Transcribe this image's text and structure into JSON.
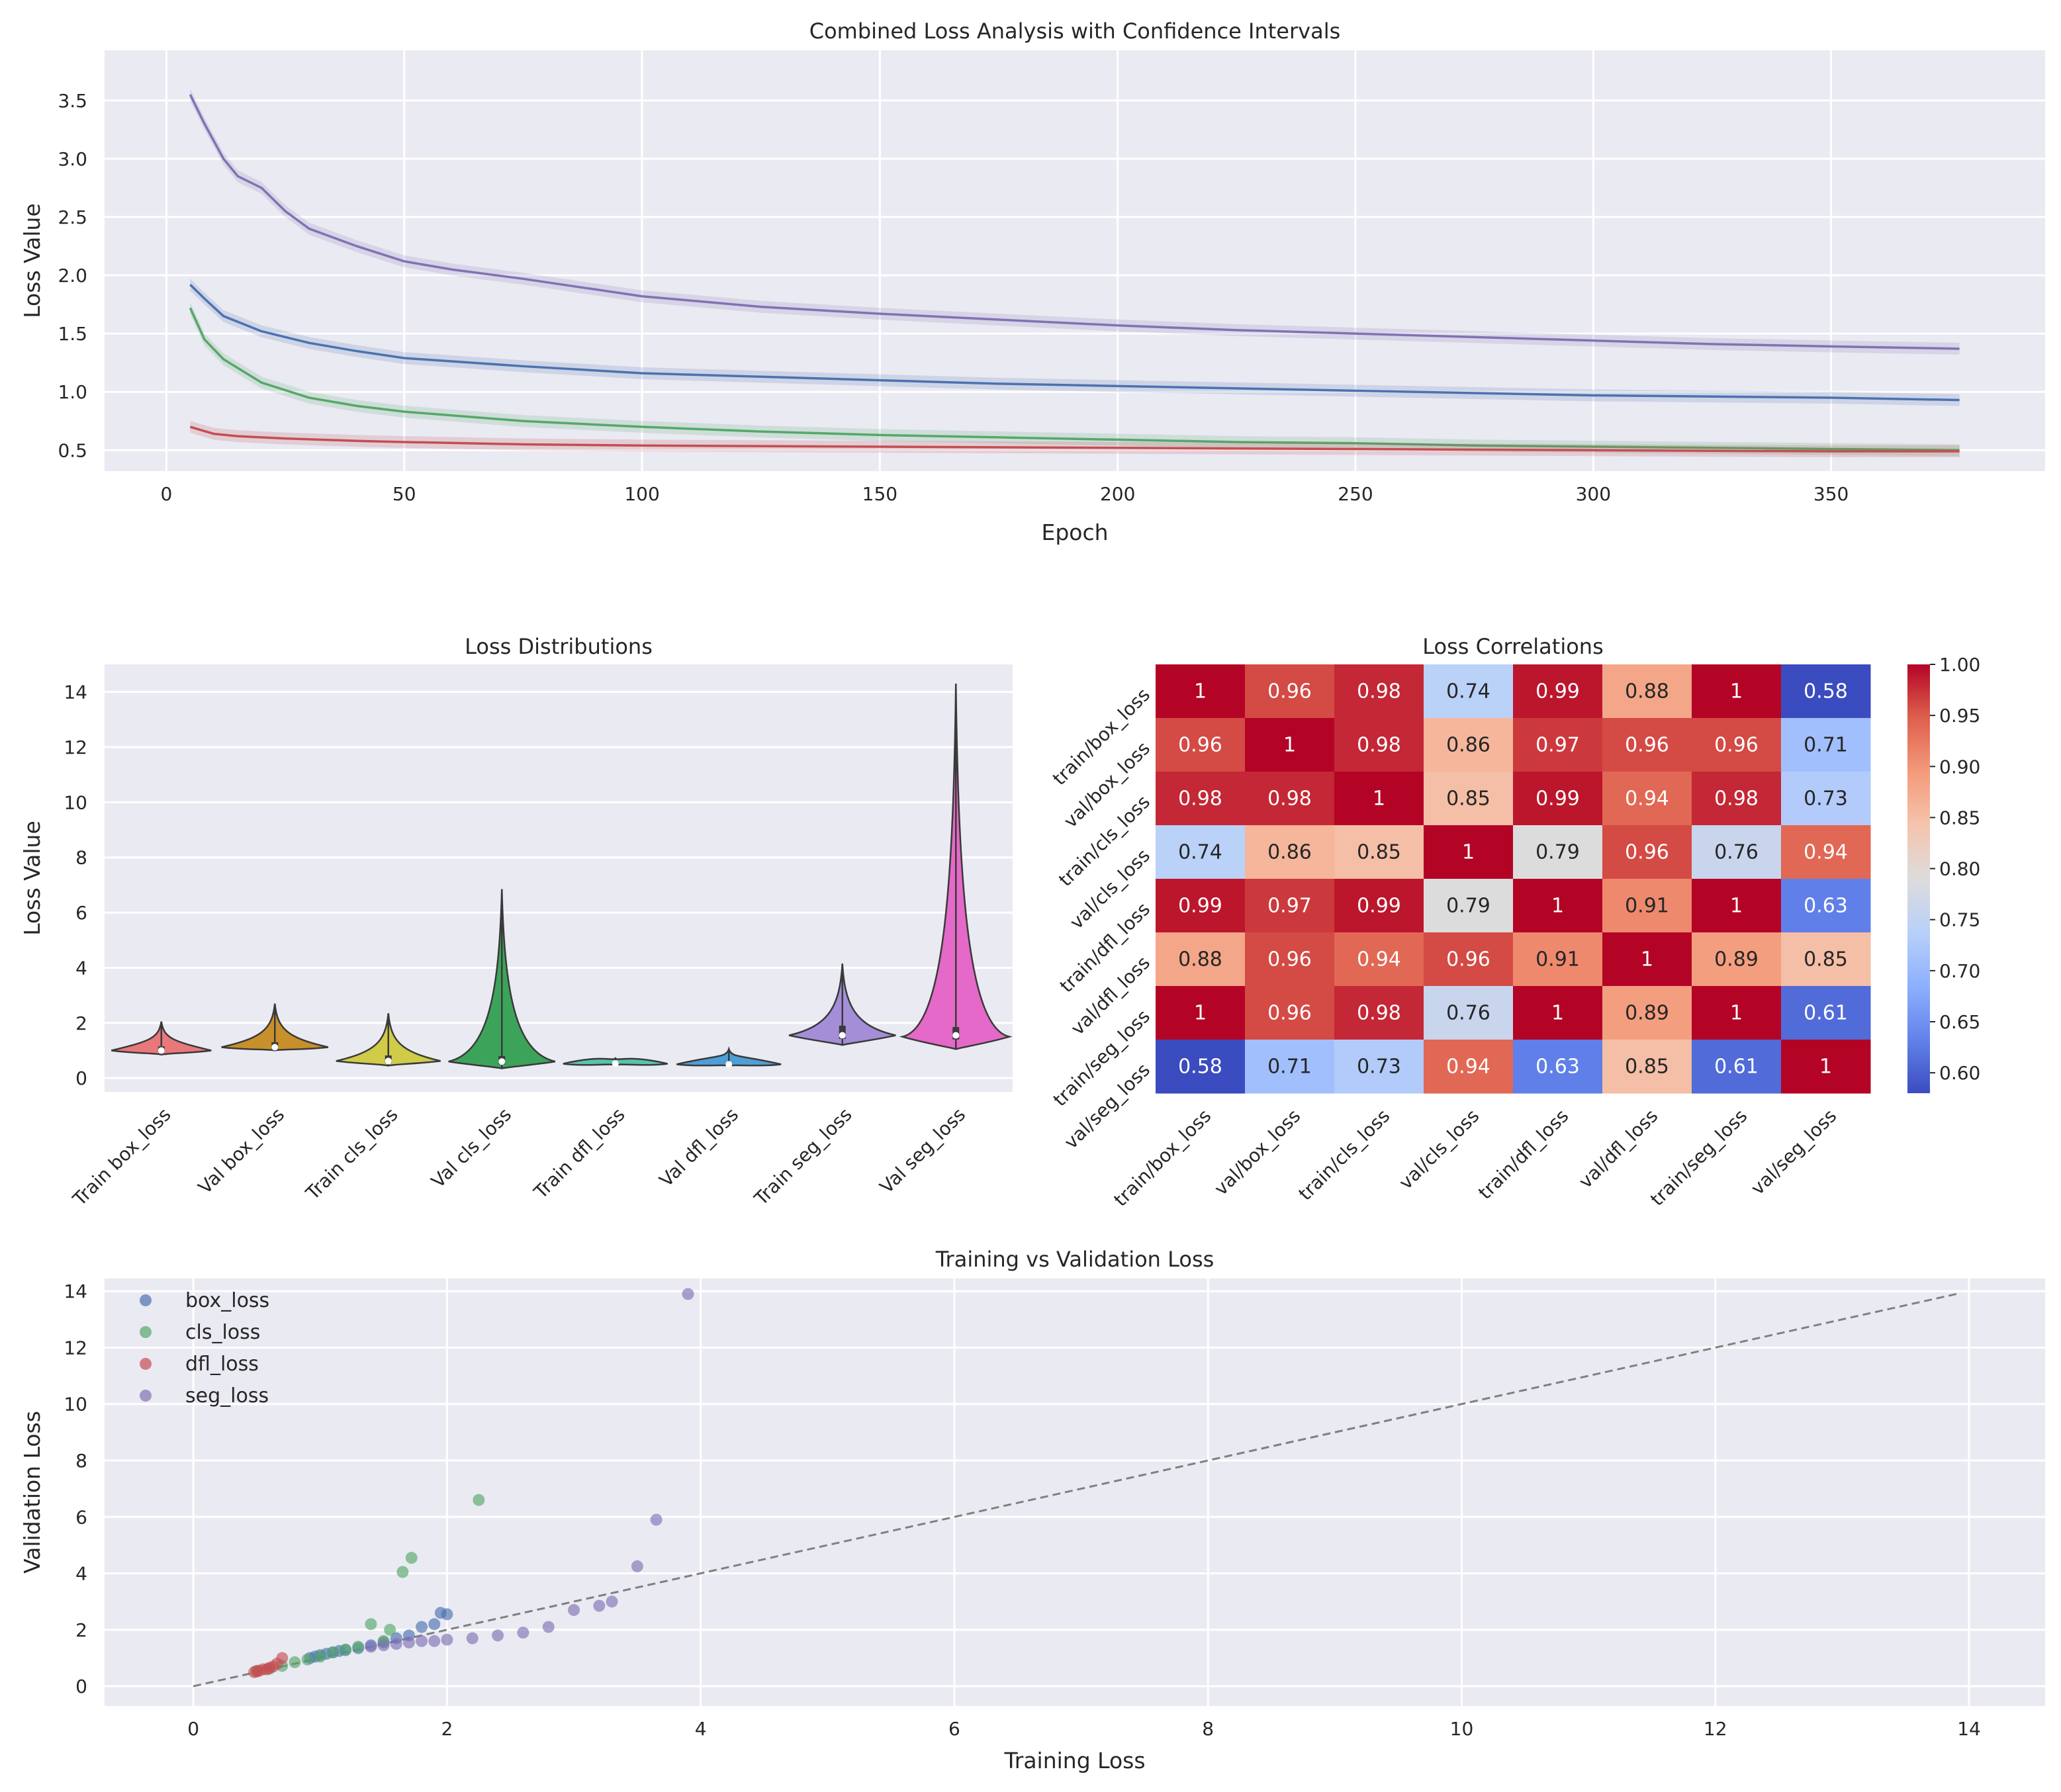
{
  "chart_data": [
    {
      "type": "line",
      "title": "Combined Loss Analysis with Confidence Intervals",
      "xlabel": "Epoch",
      "ylabel": "Loss Value",
      "xlim": [
        -13,
        395
      ],
      "ylim": [
        0.32,
        3.93
      ],
      "xticks": [
        0,
        50,
        100,
        150,
        200,
        250,
        300,
        350
      ],
      "yticks": [
        0.5,
        1.0,
        1.5,
        2.0,
        2.5,
        3.0,
        3.5
      ],
      "grid": true,
      "series": [
        {
          "color": "#8172b3",
          "confidence_band": true,
          "points": [
            [
              5,
              3.55
            ],
            [
              8,
              3.3
            ],
            [
              12,
              3.0
            ],
            [
              15,
              2.85
            ],
            [
              20,
              2.75
            ],
            [
              25,
              2.55
            ],
            [
              30,
              2.4
            ],
            [
              40,
              2.25
            ],
            [
              50,
              2.12
            ],
            [
              60,
              2.05
            ],
            [
              75,
              1.97
            ],
            [
              90,
              1.88
            ],
            [
              100,
              1.82
            ],
            [
              125,
              1.73
            ],
            [
              150,
              1.67
            ],
            [
              175,
              1.62
            ],
            [
              200,
              1.57
            ],
            [
              225,
              1.53
            ],
            [
              250,
              1.5
            ],
            [
              275,
              1.47
            ],
            [
              300,
              1.44
            ],
            [
              325,
              1.41
            ],
            [
              350,
              1.39
            ],
            [
              377,
              1.37
            ]
          ]
        },
        {
          "color": "#4c72b0",
          "confidence_band": true,
          "points": [
            [
              5,
              1.92
            ],
            [
              8,
              1.8
            ],
            [
              12,
              1.65
            ],
            [
              20,
              1.52
            ],
            [
              30,
              1.42
            ],
            [
              40,
              1.35
            ],
            [
              50,
              1.29
            ],
            [
              75,
              1.22
            ],
            [
              100,
              1.16
            ],
            [
              125,
              1.13
            ],
            [
              150,
              1.1
            ],
            [
              175,
              1.07
            ],
            [
              200,
              1.05
            ],
            [
              225,
              1.03
            ],
            [
              250,
              1.01
            ],
            [
              275,
              0.99
            ],
            [
              300,
              0.97
            ],
            [
              325,
              0.96
            ],
            [
              350,
              0.95
            ],
            [
              377,
              0.93
            ]
          ]
        },
        {
          "color": "#55a868",
          "confidence_band": true,
          "points": [
            [
              5,
              1.72
            ],
            [
              8,
              1.45
            ],
            [
              12,
              1.28
            ],
            [
              20,
              1.08
            ],
            [
              30,
              0.95
            ],
            [
              40,
              0.88
            ],
            [
              50,
              0.83
            ],
            [
              75,
              0.75
            ],
            [
              100,
              0.7
            ],
            [
              125,
              0.66
            ],
            [
              150,
              0.63
            ],
            [
              175,
              0.61
            ],
            [
              200,
              0.59
            ],
            [
              225,
              0.57
            ],
            [
              250,
              0.56
            ],
            [
              275,
              0.54
            ],
            [
              300,
              0.53
            ],
            [
              325,
              0.52
            ],
            [
              350,
              0.51
            ],
            [
              377,
              0.5
            ]
          ]
        },
        {
          "color": "#c44e52",
          "confidence_band": true,
          "points": [
            [
              5,
              0.7
            ],
            [
              10,
              0.64
            ],
            [
              15,
              0.62
            ],
            [
              25,
              0.6
            ],
            [
              40,
              0.58
            ],
            [
              50,
              0.57
            ],
            [
              75,
              0.55
            ],
            [
              100,
              0.54
            ],
            [
              150,
              0.53
            ],
            [
              200,
              0.52
            ],
            [
              250,
              0.51
            ],
            [
              300,
              0.5
            ],
            [
              350,
              0.49
            ],
            [
              377,
              0.49
            ]
          ]
        }
      ]
    },
    {
      "type": "violin",
      "title": "Loss Distributions",
      "ylabel": "Loss Value",
      "xlabel": "",
      "ylim": [
        -0.5,
        15
      ],
      "yticks": [
        0,
        2,
        4,
        6,
        8,
        10,
        12,
        14
      ],
      "grid": true,
      "categories": [
        "Train box_loss",
        "Val box_loss",
        "Train cls_loss",
        "Val cls_loss",
        "Train dfl_loss",
        "Val dfl_loss",
        "Train seg_loss",
        "Val seg_loss"
      ],
      "colors": [
        "#e8787a",
        "#c8902a",
        "#d0cb48",
        "#3ca45a",
        "#58c4a8",
        "#4e9fd8",
        "#a48ed8",
        "#e469c8"
      ],
      "violins": [
        {
          "min": 0.85,
          "max": 2.05,
          "median": 1.0,
          "q1": 0.95,
          "q3": 1.15,
          "center": 1.0,
          "halfwidth": 0.44
        },
        {
          "min": 1.0,
          "max": 2.7,
          "median": 1.12,
          "q1": 1.05,
          "q3": 1.3,
          "center": 1.12,
          "halfwidth": 0.47
        },
        {
          "min": 0.45,
          "max": 2.35,
          "median": 0.62,
          "q1": 0.55,
          "q3": 0.82,
          "center": 0.62,
          "halfwidth": 0.46
        },
        {
          "min": 0.35,
          "max": 6.85,
          "median": 0.6,
          "q1": 0.5,
          "q3": 0.8,
          "center": 0.6,
          "halfwidth": 0.47
        },
        {
          "min": 0.48,
          "max": 0.72,
          "median": 0.53,
          "q1": 0.51,
          "q3": 0.57,
          "center": 0.52,
          "halfwidth": 0.46
        },
        {
          "min": 0.45,
          "max": 1.05,
          "median": 0.5,
          "q1": 0.48,
          "q3": 0.55,
          "center": 0.5,
          "halfwidth": 0.46
        },
        {
          "min": 1.2,
          "max": 4.15,
          "median": 1.55,
          "q1": 1.42,
          "q3": 1.9,
          "center": 1.55,
          "halfwidth": 0.47
        },
        {
          "min": 1.05,
          "max": 14.3,
          "median": 1.55,
          "q1": 1.4,
          "q3": 1.85,
          "center": 1.5,
          "halfwidth": 0.47
        }
      ]
    },
    {
      "type": "heatmap",
      "title": "Loss Correlations",
      "labels": [
        "train/box_loss",
        "val/box_loss",
        "train/cls_loss",
        "val/cls_loss",
        "train/dfl_loss",
        "val/dfl_loss",
        "train/seg_loss",
        "val/seg_loss"
      ],
      "matrix": [
        [
          1,
          0.96,
          0.98,
          0.74,
          0.99,
          0.88,
          1,
          0.58
        ],
        [
          0.96,
          1,
          0.98,
          0.86,
          0.97,
          0.96,
          0.96,
          0.71
        ],
        [
          0.98,
          0.98,
          1,
          0.85,
          0.99,
          0.94,
          0.98,
          0.73
        ],
        [
          0.74,
          0.86,
          0.85,
          1,
          0.79,
          0.96,
          0.76,
          0.94
        ],
        [
          0.99,
          0.97,
          0.99,
          0.79,
          1,
          0.91,
          1,
          0.63
        ],
        [
          0.88,
          0.96,
          0.94,
          0.96,
          0.91,
          1,
          0.89,
          0.85
        ],
        [
          1,
          0.96,
          0.98,
          0.76,
          1,
          0.89,
          1,
          0.61
        ],
        [
          0.58,
          0.71,
          0.73,
          0.94,
          0.63,
          0.85,
          0.61,
          1
        ]
      ],
      "colormap": "coolwarm",
      "colorbar": {
        "min": 0.58,
        "max": 1.0,
        "ticks": [
          "1.00",
          "0.95",
          "0.90",
          "0.85",
          "0.80",
          "0.75",
          "0.70",
          "0.65",
          "0.60"
        ]
      }
    },
    {
      "type": "scatter",
      "title": "Training vs Validation Loss",
      "xlabel": "Training Loss",
      "ylabel": "Validation Loss",
      "xlim": [
        -0.7,
        14.6
      ],
      "ylim": [
        -0.7,
        14.45
      ],
      "xticks": [
        0,
        2,
        4,
        6,
        8,
        10,
        12,
        14
      ],
      "yticks": [
        0,
        2,
        4,
        6,
        8,
        10,
        12,
        14
      ],
      "grid": true,
      "legend": "upper-left",
      "reference_line": {
        "from": [
          0,
          0
        ],
        "to": [
          13.9,
          13.9
        ],
        "style": "dashed",
        "color": "#808080"
      },
      "series": [
        {
          "name": "box_loss",
          "color": "#4c72b0",
          "points": [
            [
              0.92,
              1.0
            ],
            [
              0.96,
              1.05
            ],
            [
              1.0,
              1.1
            ],
            [
              1.05,
              1.15
            ],
            [
              1.1,
              1.2
            ],
            [
              1.15,
              1.25
            ],
            [
              1.2,
              1.28
            ],
            [
              1.3,
              1.35
            ],
            [
              1.4,
              1.45
            ],
            [
              1.5,
              1.55
            ],
            [
              1.6,
              1.7
            ],
            [
              1.7,
              1.8
            ],
            [
              1.8,
              2.1
            ],
            [
              1.9,
              2.2
            ],
            [
              1.95,
              2.6
            ],
            [
              2.0,
              2.55
            ]
          ]
        },
        {
          "name": "cls_loss",
          "color": "#55a868",
          "points": [
            [
              0.5,
              0.55
            ],
            [
              0.6,
              0.62
            ],
            [
              0.7,
              0.72
            ],
            [
              0.8,
              0.85
            ],
            [
              0.9,
              0.95
            ],
            [
              1.0,
              1.05
            ],
            [
              1.1,
              1.2
            ],
            [
              1.2,
              1.3
            ],
            [
              1.3,
              1.4
            ],
            [
              1.4,
              2.2
            ],
            [
              1.5,
              1.6
            ],
            [
              1.55,
              2.0
            ],
            [
              1.65,
              4.05
            ],
            [
              1.72,
              4.55
            ],
            [
              2.25,
              6.6
            ]
          ]
        },
        {
          "name": "dfl_loss",
          "color": "#c44e52",
          "points": [
            [
              0.48,
              0.5
            ],
            [
              0.5,
              0.52
            ],
            [
              0.52,
              0.55
            ],
            [
              0.55,
              0.6
            ],
            [
              0.58,
              0.6
            ],
            [
              0.6,
              0.65
            ],
            [
              0.63,
              0.7
            ],
            [
              0.66,
              0.8
            ],
            [
              0.7,
              1.0
            ]
          ]
        },
        {
          "name": "seg_loss",
          "color": "#8172b3",
          "points": [
            [
              1.4,
              1.4
            ],
            [
              1.5,
              1.45
            ],
            [
              1.6,
              1.5
            ],
            [
              1.7,
              1.55
            ],
            [
              1.8,
              1.6
            ],
            [
              1.9,
              1.6
            ],
            [
              2.0,
              1.65
            ],
            [
              2.2,
              1.7
            ],
            [
              2.4,
              1.8
            ],
            [
              2.6,
              1.9
            ],
            [
              2.8,
              2.1
            ],
            [
              3.0,
              2.7
            ],
            [
              3.2,
              2.85
            ],
            [
              3.3,
              3.0
            ],
            [
              3.5,
              4.25
            ],
            [
              3.65,
              5.9
            ],
            [
              3.9,
              13.9
            ]
          ]
        }
      ]
    }
  ]
}
